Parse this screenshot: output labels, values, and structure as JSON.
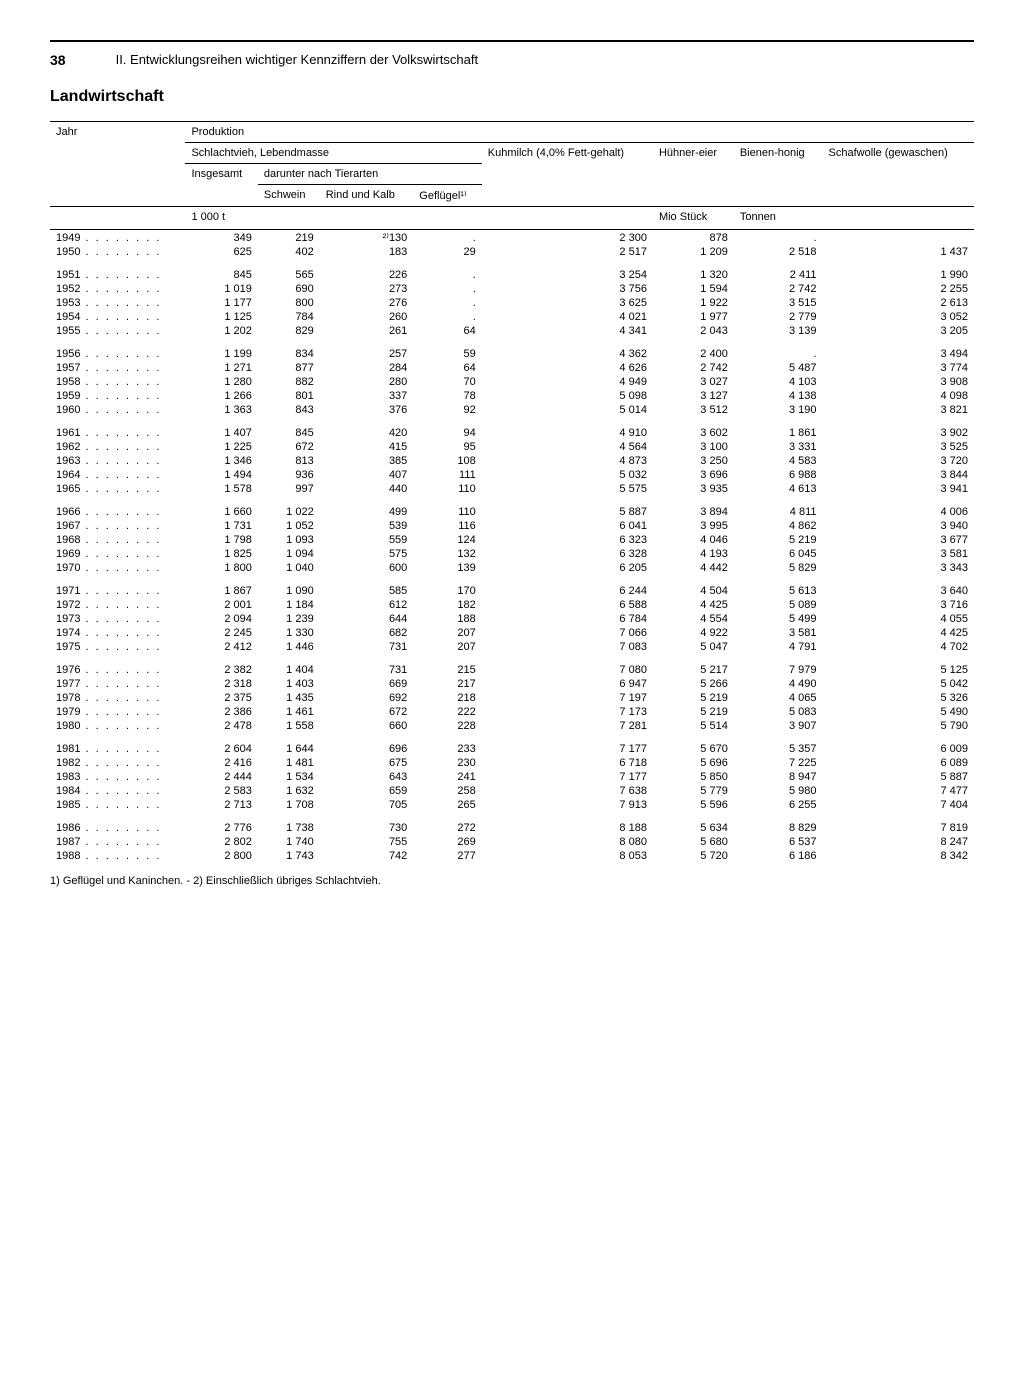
{
  "page_number": "38",
  "doc_header": "II. Entwicklungsreihen wichtiger Kennziffern der Volkswirtschaft",
  "section_title": "Landwirtschaft",
  "col_year": "Jahr",
  "col_production": "Produktion",
  "col_schlachtvieh": "Schlachtvieh, Lebendmasse",
  "col_kuhmilch": "Kuhmilch (4,0% Fett-gehalt)",
  "col_huehnereier": "Hühner-eier",
  "col_bienenhonig": "Bienen-honig",
  "col_schafwolle": "Schafwolle (gewaschen)",
  "col_insgesamt": "Insgesamt",
  "col_darunter": "darunter nach Tierarten",
  "col_schwein": "Schwein",
  "col_rind": "Rind und Kalb",
  "col_gefluegel": "Geflügel¹⁾",
  "unit_1000t": "1 000 t",
  "unit_mio_stueck": "Mio Stück",
  "unit_tonnen": "Tonnen",
  "footnote": "1) Geflügel und Kaninchen. - 2) Einschließlich übriges Schlachtvieh.",
  "year_dots": " . . . . . . . .",
  "groups": [
    [
      {
        "year": "1949",
        "insgesamt": "349",
        "schwein": "219",
        "rind": "²⁾130",
        "gefluegel": ".",
        "kuhmilch": "2 300",
        "huehnereier": "878",
        "bienenhonig": ".",
        "schafwolle": ""
      },
      {
        "year": "1950",
        "insgesamt": "625",
        "schwein": "402",
        "rind": "183",
        "gefluegel": "29",
        "kuhmilch": "2 517",
        "huehnereier": "1 209",
        "bienenhonig": "2 518",
        "schafwolle": "1 437"
      }
    ],
    [
      {
        "year": "1951",
        "insgesamt": "845",
        "schwein": "565",
        "rind": "226",
        "gefluegel": ".",
        "kuhmilch": "3 254",
        "huehnereier": "1 320",
        "bienenhonig": "2 411",
        "schafwolle": "1 990"
      },
      {
        "year": "1952",
        "insgesamt": "1 019",
        "schwein": "690",
        "rind": "273",
        "gefluegel": ".",
        "kuhmilch": "3 756",
        "huehnereier": "1 594",
        "bienenhonig": "2 742",
        "schafwolle": "2 255"
      },
      {
        "year": "1953",
        "insgesamt": "1 177",
        "schwein": "800",
        "rind": "276",
        "gefluegel": ".",
        "kuhmilch": "3 625",
        "huehnereier": "1 922",
        "bienenhonig": "3 515",
        "schafwolle": "2 613"
      },
      {
        "year": "1954",
        "insgesamt": "1 125",
        "schwein": "784",
        "rind": "260",
        "gefluegel": ".",
        "kuhmilch": "4 021",
        "huehnereier": "1 977",
        "bienenhonig": "2 779",
        "schafwolle": "3 052"
      },
      {
        "year": "1955",
        "insgesamt": "1 202",
        "schwein": "829",
        "rind": "261",
        "gefluegel": "64",
        "kuhmilch": "4 341",
        "huehnereier": "2 043",
        "bienenhonig": "3 139",
        "schafwolle": "3 205"
      }
    ],
    [
      {
        "year": "1956",
        "insgesamt": "1 199",
        "schwein": "834",
        "rind": "257",
        "gefluegel": "59",
        "kuhmilch": "4 362",
        "huehnereier": "2 400",
        "bienenhonig": ".",
        "schafwolle": "3 494"
      },
      {
        "year": "1957",
        "insgesamt": "1 271",
        "schwein": "877",
        "rind": "284",
        "gefluegel": "64",
        "kuhmilch": "4 626",
        "huehnereier": "2 742",
        "bienenhonig": "5 487",
        "schafwolle": "3 774"
      },
      {
        "year": "1958",
        "insgesamt": "1 280",
        "schwein": "882",
        "rind": "280",
        "gefluegel": "70",
        "kuhmilch": "4 949",
        "huehnereier": "3 027",
        "bienenhonig": "4 103",
        "schafwolle": "3 908"
      },
      {
        "year": "1959",
        "insgesamt": "1 266",
        "schwein": "801",
        "rind": "337",
        "gefluegel": "78",
        "kuhmilch": "5 098",
        "huehnereier": "3 127",
        "bienenhonig": "4 138",
        "schafwolle": "4 098"
      },
      {
        "year": "1960",
        "insgesamt": "1 363",
        "schwein": "843",
        "rind": "376",
        "gefluegel": "92",
        "kuhmilch": "5 014",
        "huehnereier": "3 512",
        "bienenhonig": "3 190",
        "schafwolle": "3 821"
      }
    ],
    [
      {
        "year": "1961",
        "insgesamt": "1 407",
        "schwein": "845",
        "rind": "420",
        "gefluegel": "94",
        "kuhmilch": "4 910",
        "huehnereier": "3 602",
        "bienenhonig": "1 861",
        "schafwolle": "3 902"
      },
      {
        "year": "1962",
        "insgesamt": "1 225",
        "schwein": "672",
        "rind": "415",
        "gefluegel": "95",
        "kuhmilch": "4 564",
        "huehnereier": "3 100",
        "bienenhonig": "3 331",
        "schafwolle": "3 525"
      },
      {
        "year": "1963",
        "insgesamt": "1 346",
        "schwein": "813",
        "rind": "385",
        "gefluegel": "108",
        "kuhmilch": "4 873",
        "huehnereier": "3 250",
        "bienenhonig": "4 583",
        "schafwolle": "3 720"
      },
      {
        "year": "1964",
        "insgesamt": "1 494",
        "schwein": "936",
        "rind": "407",
        "gefluegel": "111",
        "kuhmilch": "5 032",
        "huehnereier": "3 696",
        "bienenhonig": "6 988",
        "schafwolle": "3 844"
      },
      {
        "year": "1965",
        "insgesamt": "1 578",
        "schwein": "997",
        "rind": "440",
        "gefluegel": "110",
        "kuhmilch": "5 575",
        "huehnereier": "3 935",
        "bienenhonig": "4 613",
        "schafwolle": "3 941"
      }
    ],
    [
      {
        "year": "1966",
        "insgesamt": "1 660",
        "schwein": "1 022",
        "rind": "499",
        "gefluegel": "110",
        "kuhmilch": "5 887",
        "huehnereier": "3 894",
        "bienenhonig": "4 811",
        "schafwolle": "4 006"
      },
      {
        "year": "1967",
        "insgesamt": "1 731",
        "schwein": "1 052",
        "rind": "539",
        "gefluegel": "116",
        "kuhmilch": "6 041",
        "huehnereier": "3 995",
        "bienenhonig": "4 862",
        "schafwolle": "3 940"
      },
      {
        "year": "1968",
        "insgesamt": "1 798",
        "schwein": "1 093",
        "rind": "559",
        "gefluegel": "124",
        "kuhmilch": "6 323",
        "huehnereier": "4 046",
        "bienenhonig": "5 219",
        "schafwolle": "3 677"
      },
      {
        "year": "1969",
        "insgesamt": "1 825",
        "schwein": "1 094",
        "rind": "575",
        "gefluegel": "132",
        "kuhmilch": "6 328",
        "huehnereier": "4 193",
        "bienenhonig": "6 045",
        "schafwolle": "3 581"
      },
      {
        "year": "1970",
        "insgesamt": "1 800",
        "schwein": "1 040",
        "rind": "600",
        "gefluegel": "139",
        "kuhmilch": "6 205",
        "huehnereier": "4 442",
        "bienenhonig": "5 829",
        "schafwolle": "3 343"
      }
    ],
    [
      {
        "year": "1971",
        "insgesamt": "1 867",
        "schwein": "1 090",
        "rind": "585",
        "gefluegel": "170",
        "kuhmilch": "6 244",
        "huehnereier": "4 504",
        "bienenhonig": "5 613",
        "schafwolle": "3 640"
      },
      {
        "year": "1972",
        "insgesamt": "2 001",
        "schwein": "1 184",
        "rind": "612",
        "gefluegel": "182",
        "kuhmilch": "6 588",
        "huehnereier": "4 425",
        "bienenhonig": "5 089",
        "schafwolle": "3 716"
      },
      {
        "year": "1973",
        "insgesamt": "2 094",
        "schwein": "1 239",
        "rind": "644",
        "gefluegel": "188",
        "kuhmilch": "6 784",
        "huehnereier": "4 554",
        "bienenhonig": "5 499",
        "schafwolle": "4 055"
      },
      {
        "year": "1974",
        "insgesamt": "2 245",
        "schwein": "1 330",
        "rind": "682",
        "gefluegel": "207",
        "kuhmilch": "7 066",
        "huehnereier": "4 922",
        "bienenhonig": "3 581",
        "schafwolle": "4 425"
      },
      {
        "year": "1975",
        "insgesamt": "2 412",
        "schwein": "1 446",
        "rind": "731",
        "gefluegel": "207",
        "kuhmilch": "7 083",
        "huehnereier": "5 047",
        "bienenhonig": "4 791",
        "schafwolle": "4 702"
      }
    ],
    [
      {
        "year": "1976",
        "insgesamt": "2 382",
        "schwein": "1 404",
        "rind": "731",
        "gefluegel": "215",
        "kuhmilch": "7 080",
        "huehnereier": "5 217",
        "bienenhonig": "7 979",
        "schafwolle": "5 125"
      },
      {
        "year": "1977",
        "insgesamt": "2 318",
        "schwein": "1 403",
        "rind": "669",
        "gefluegel": "217",
        "kuhmilch": "6 947",
        "huehnereier": "5 266",
        "bienenhonig": "4 490",
        "schafwolle": "5 042"
      },
      {
        "year": "1978",
        "insgesamt": "2 375",
        "schwein": "1 435",
        "rind": "692",
        "gefluegel": "218",
        "kuhmilch": "7 197",
        "huehnereier": "5 219",
        "bienenhonig": "4 065",
        "schafwolle": "5 326"
      },
      {
        "year": "1979",
        "insgesamt": "2 386",
        "schwein": "1 461",
        "rind": "672",
        "gefluegel": "222",
        "kuhmilch": "7 173",
        "huehnereier": "5 219",
        "bienenhonig": "5 083",
        "schafwolle": "5 490"
      },
      {
        "year": "1980",
        "insgesamt": "2 478",
        "schwein": "1 558",
        "rind": "660",
        "gefluegel": "228",
        "kuhmilch": "7 281",
        "huehnereier": "5 514",
        "bienenhonig": "3 907",
        "schafwolle": "5 790"
      }
    ],
    [
      {
        "year": "1981",
        "insgesamt": "2 604",
        "schwein": "1 644",
        "rind": "696",
        "gefluegel": "233",
        "kuhmilch": "7 177",
        "huehnereier": "5 670",
        "bienenhonig": "5 357",
        "schafwolle": "6 009"
      },
      {
        "year": "1982",
        "insgesamt": "2 416",
        "schwein": "1 481",
        "rind": "675",
        "gefluegel": "230",
        "kuhmilch": "6 718",
        "huehnereier": "5 696",
        "bienenhonig": "7 225",
        "schafwolle": "6 089"
      },
      {
        "year": "1983",
        "insgesamt": "2 444",
        "schwein": "1 534",
        "rind": "643",
        "gefluegel": "241",
        "kuhmilch": "7 177",
        "huehnereier": "5 850",
        "bienenhonig": "8 947",
        "schafwolle": "5 887"
      },
      {
        "year": "1984",
        "insgesamt": "2 583",
        "schwein": "1 632",
        "rind": "659",
        "gefluegel": "258",
        "kuhmilch": "7 638",
        "huehnereier": "5 779",
        "bienenhonig": "5 980",
        "schafwolle": "7 477"
      },
      {
        "year": "1985",
        "insgesamt": "2 713",
        "schwein": "1 708",
        "rind": "705",
        "gefluegel": "265",
        "kuhmilch": "7 913",
        "huehnereier": "5 596",
        "bienenhonig": "6 255",
        "schafwolle": "7 404"
      }
    ],
    [
      {
        "year": "1986",
        "insgesamt": "2 776",
        "schwein": "1 738",
        "rind": "730",
        "gefluegel": "272",
        "kuhmilch": "8 188",
        "huehnereier": "5 634",
        "bienenhonig": "8 829",
        "schafwolle": "7 819"
      },
      {
        "year": "1987",
        "insgesamt": "2 802",
        "schwein": "1 740",
        "rind": "755",
        "gefluegel": "269",
        "kuhmilch": "8 080",
        "huehnereier": "5 680",
        "bienenhonig": "6 537",
        "schafwolle": "8 247"
      },
      {
        "year": "1988",
        "insgesamt": "2 800",
        "schwein": "1 743",
        "rind": "742",
        "gefluegel": "277",
        "kuhmilch": "8 053",
        "huehnereier": "5 720",
        "bienenhonig": "6 186",
        "schafwolle": "8 342"
      }
    ]
  ]
}
